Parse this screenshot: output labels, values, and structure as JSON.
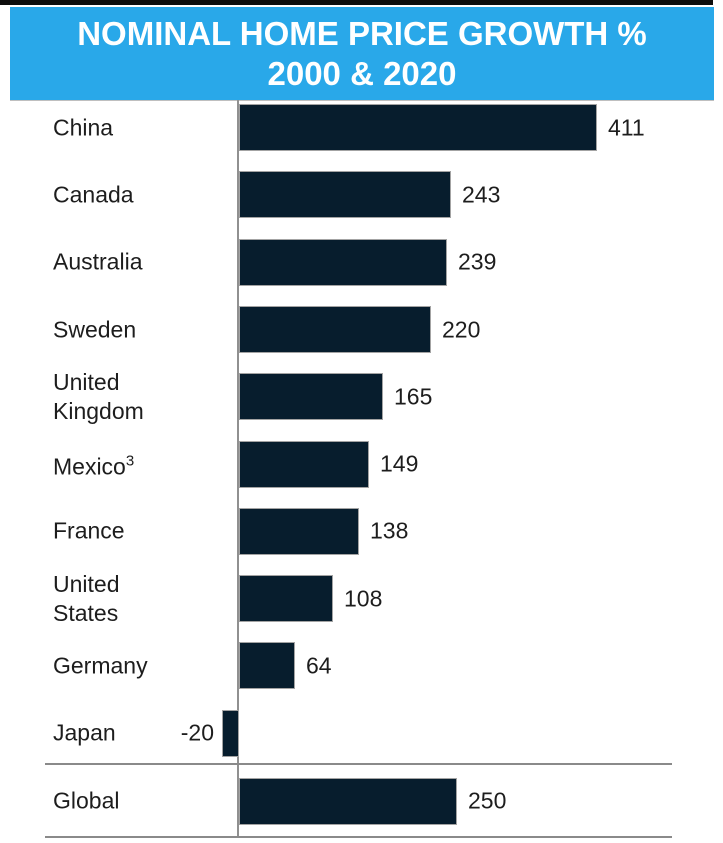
{
  "header": {
    "title_line1": "NOMINAL HOME PRICE GROWTH %",
    "title_line2": "2000 & 2020",
    "background_color": "#29a8e9",
    "text_color": "#ffffff"
  },
  "chart_data": {
    "type": "bar",
    "orientation": "horizontal",
    "title": "NOMINAL HOME PRICE GROWTH % 2000 & 2020",
    "categories": [
      "China",
      "Canada",
      "Australia",
      "Sweden",
      "United\nKingdom",
      "Mexico",
      "France",
      "United\nStates",
      "Germany",
      "Japan"
    ],
    "superscripts": [
      "",
      "",
      "",
      "",
      "",
      "3",
      "",
      "",
      "",
      ""
    ],
    "values": [
      411,
      243,
      239,
      220,
      165,
      149,
      138,
      108,
      64,
      -20
    ],
    "value_labels": [
      "411",
      "243",
      "239",
      "220",
      "165",
      "149",
      "138",
      "108",
      "64",
      "-20"
    ],
    "summary_row": {
      "category": "Global",
      "value": 250,
      "value_label": "250"
    },
    "xmax": 411,
    "grid": false,
    "legend": "none",
    "bar_color": "#071d2d",
    "axis_color": "#909090",
    "separator_color": "#8a8a8a",
    "label_color": "#1d1d1d"
  }
}
